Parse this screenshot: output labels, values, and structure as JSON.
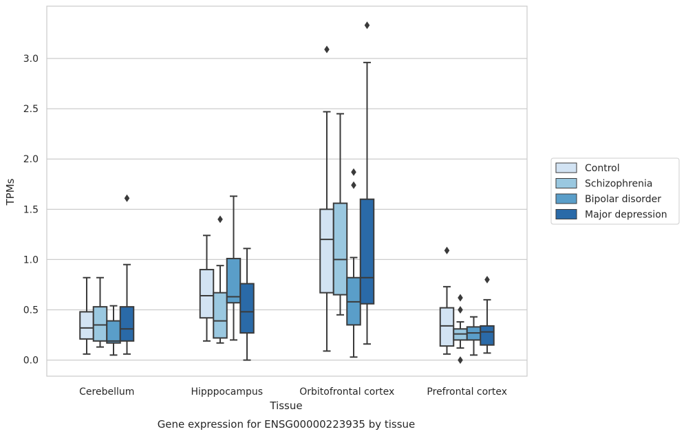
{
  "chart_data": {
    "type": "box",
    "categories": [
      "Cerebellum",
      "Hipppocampus",
      "Orbitofrontal cortex",
      "Prefrontal cortex"
    ],
    "xlabel": "Tissue",
    "ylabel": "TPMs",
    "caption": "Gene expression for ENSG00000223935 by tissue",
    "ylim": [
      -0.16,
      3.52
    ],
    "yticks": [
      0.0,
      0.5,
      1.0,
      1.5,
      2.0,
      2.5,
      3.0
    ],
    "ytick_labels": [
      "0.0",
      "0.5",
      "1.0",
      "1.5",
      "2.0",
      "2.5",
      "3.0"
    ],
    "grid": "horizontal",
    "legend_position": "right",
    "series": [
      {
        "name": "Control",
        "color": "#d2e3f3",
        "boxes": [
          {
            "whislo": 0.06,
            "q1": 0.21,
            "med": 0.32,
            "q3": 0.48,
            "whishi": 0.82,
            "fliers": []
          },
          {
            "whislo": 0.19,
            "q1": 0.42,
            "med": 0.64,
            "q3": 0.9,
            "whishi": 1.24,
            "fliers": []
          },
          {
            "whislo": 0.09,
            "q1": 0.67,
            "med": 1.2,
            "q3": 1.5,
            "whishi": 2.47,
            "fliers": [
              3.09
            ]
          },
          {
            "whislo": 0.06,
            "q1": 0.14,
            "med": 0.34,
            "q3": 0.52,
            "whishi": 0.73,
            "fliers": [
              1.09
            ]
          }
        ]
      },
      {
        "name": "Schizophrenia",
        "color": "#9ac8e0",
        "boxes": [
          {
            "whislo": 0.13,
            "q1": 0.19,
            "med": 0.35,
            "q3": 0.53,
            "whishi": 0.82,
            "fliers": []
          },
          {
            "whislo": 0.17,
            "q1": 0.22,
            "med": 0.39,
            "q3": 0.67,
            "whishi": 0.94,
            "fliers": [
              1.4
            ]
          },
          {
            "whislo": 0.45,
            "q1": 0.65,
            "med": 1.0,
            "q3": 1.56,
            "whishi": 2.45,
            "fliers": []
          },
          {
            "whislo": 0.12,
            "q1": 0.2,
            "med": 0.26,
            "q3": 0.31,
            "whishi": 0.38,
            "fliers": [
              0.62,
              0.5,
              0.0
            ]
          }
        ]
      },
      {
        "name": "Bipolar disorder",
        "color": "#5a9ec9",
        "boxes": [
          {
            "whislo": 0.05,
            "q1": 0.17,
            "med": 0.19,
            "q3": 0.39,
            "whishi": 0.54,
            "fliers": []
          },
          {
            "whislo": 0.2,
            "q1": 0.57,
            "med": 0.63,
            "q3": 1.01,
            "whishi": 1.63,
            "fliers": []
          },
          {
            "whislo": 0.03,
            "q1": 0.35,
            "med": 0.58,
            "q3": 0.82,
            "whishi": 1.02,
            "fliers": [
              1.87,
              1.74
            ]
          },
          {
            "whislo": 0.05,
            "q1": 0.2,
            "med": 0.27,
            "q3": 0.33,
            "whishi": 0.43,
            "fliers": []
          }
        ]
      },
      {
        "name": "Major depression",
        "color": "#2a6aa8",
        "boxes": [
          {
            "whislo": 0.06,
            "q1": 0.19,
            "med": 0.31,
            "q3": 0.53,
            "whishi": 0.95,
            "fliers": [
              1.61
            ]
          },
          {
            "whislo": 0.0,
            "q1": 0.27,
            "med": 0.48,
            "q3": 0.76,
            "whishi": 1.11,
            "fliers": []
          },
          {
            "whislo": 0.16,
            "q1": 0.56,
            "med": 0.82,
            "q3": 1.6,
            "whishi": 2.96,
            "fliers": [
              3.33
            ]
          },
          {
            "whislo": 0.07,
            "q1": 0.15,
            "med": 0.28,
            "q3": 0.34,
            "whishi": 0.6,
            "fliers": [
              0.8
            ]
          }
        ]
      }
    ]
  }
}
